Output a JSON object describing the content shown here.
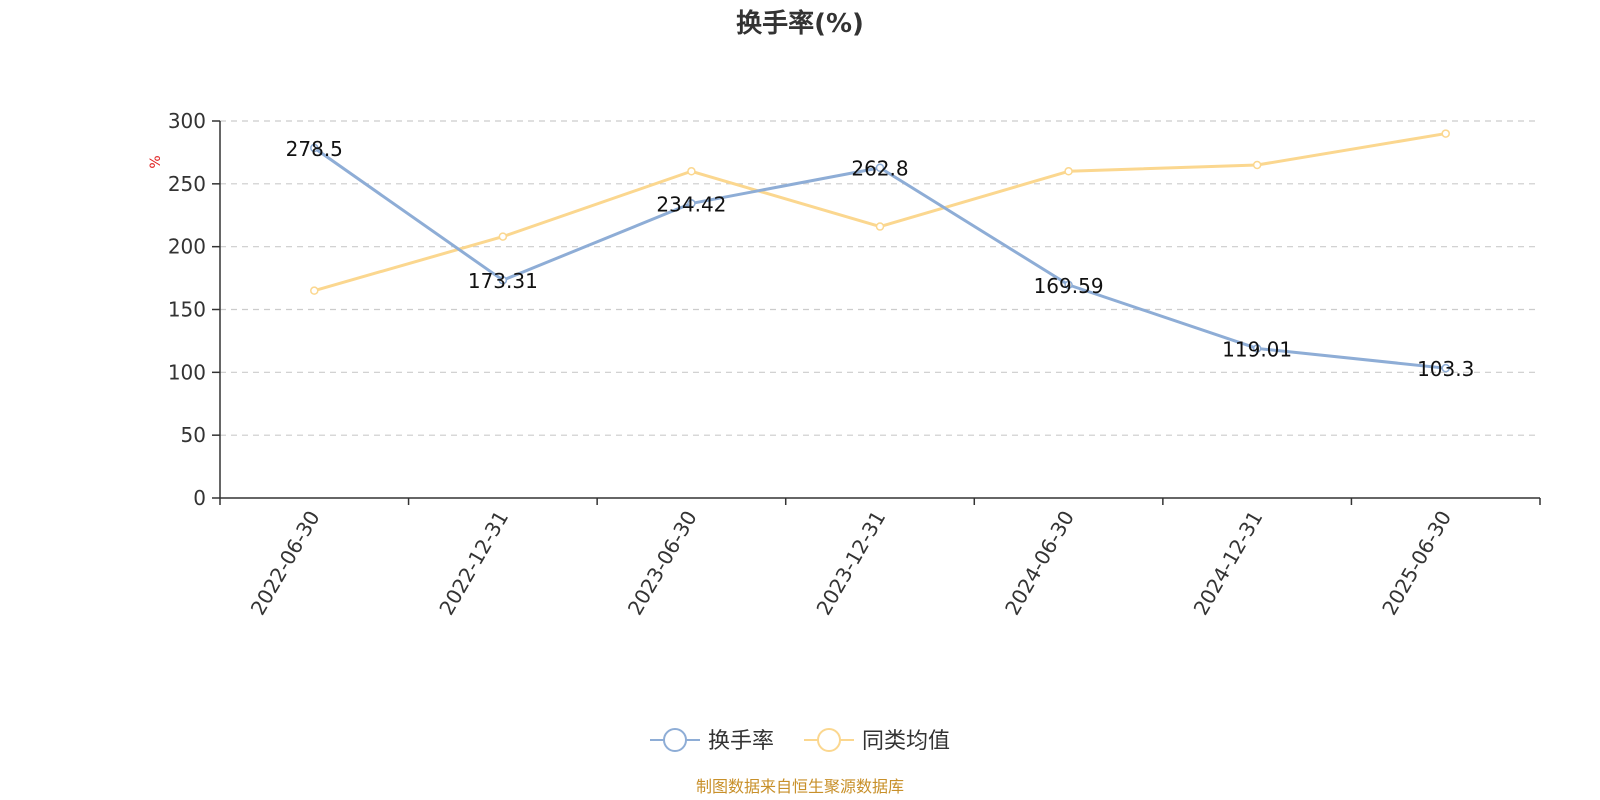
{
  "chart_data": {
    "type": "line",
    "title": "换手率(%)",
    "ylabel": "%",
    "xlabel": "",
    "ylim": [
      0,
      300
    ],
    "yticks": [
      0,
      50,
      100,
      150,
      200,
      250,
      300
    ],
    "categories": [
      "2022-06-30",
      "2022-12-31",
      "2023-06-30",
      "2023-12-31",
      "2024-06-30",
      "2024-12-31",
      "2025-06-30"
    ],
    "series": [
      {
        "name": "换手率",
        "color": "#8eadd6",
        "values": [
          278.5,
          173.31,
          234.42,
          262.8,
          169.59,
          119.01,
          103.3
        ],
        "labels": [
          "278.5",
          "173.31",
          "234.42",
          "262.8",
          "169.59",
          "119.01",
          "103.3"
        ],
        "show_labels": true
      },
      {
        "name": "同类均值",
        "color": "#fbd78f",
        "values": [
          165,
          208,
          260,
          216,
          260,
          265,
          290
        ],
        "show_labels": false
      }
    ],
    "grid": true,
    "legend_position": "bottom-center",
    "source_note": "制图数据来自恒生聚源数据库"
  }
}
